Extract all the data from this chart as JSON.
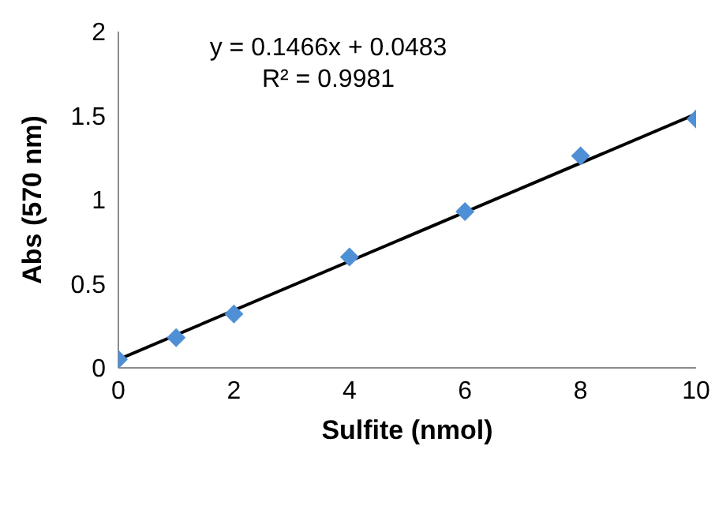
{
  "chart_data": {
    "type": "scatter",
    "xlabel": "Sulfite (nmol)",
    "ylabel": "Abs (570 nm)",
    "annotations": [
      "y = 0.1466x + 0.0483",
      "R² = 0.9981"
    ],
    "x": [
      0,
      1,
      2,
      4,
      6,
      8,
      10
    ],
    "series": [
      {
        "color": "#4f8fd6",
        "values": [
          0.05,
          0.18,
          0.32,
          0.66,
          0.93,
          1.26,
          1.48
        ]
      },
      {
        "type": "line",
        "color": "#000000",
        "marker": "none",
        "x": [
          0,
          10
        ],
        "values": [
          0.05,
          1.51
        ]
      }
    ],
    "marker": "diamond",
    "xlim": [
      0,
      10
    ],
    "xticks": [
      0,
      2,
      4,
      6,
      8,
      10
    ],
    "ylim": [
      0,
      2
    ],
    "yticks": [
      0,
      0.5,
      1,
      1.5,
      2
    ],
    "grid": false
  }
}
